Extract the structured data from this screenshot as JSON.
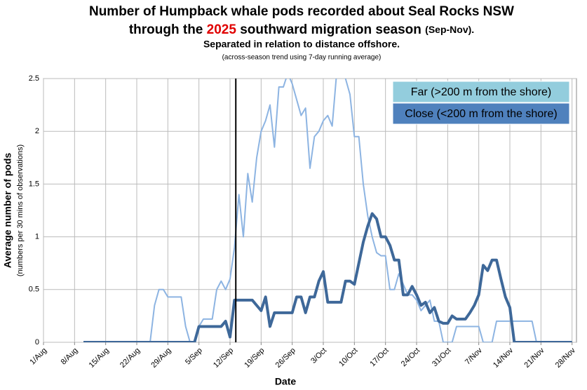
{
  "chart_data": {
    "type": "line",
    "title": "Number of Humpback whale pods recorded about Seal Rocks NSW",
    "title2_parts": [
      "through the ",
      "2025",
      " southward migration season ",
      "(Sep-Nov)."
    ],
    "subtitle": "Separated in relation to distance offshore.",
    "note": "(across-season trend using 7-day running  average)",
    "y_label": "Average number of pods",
    "y_label2": "(numbers per 30 mins of observations)",
    "x_label": "Date",
    "xlim": [
      0,
      120
    ],
    "xticks": [
      {
        "value": 0,
        "label": "1/Aug"
      },
      {
        "value": 7,
        "label": "8/Aug"
      },
      {
        "value": 14,
        "label": "15/Aug"
      },
      {
        "value": 21,
        "label": "22/Aug"
      },
      {
        "value": 28,
        "label": "29/Aug"
      },
      {
        "value": 35,
        "label": "5/Sep"
      },
      {
        "value": 42,
        "label": "12/Sep"
      },
      {
        "value": 49,
        "label": "19/Sep"
      },
      {
        "value": 56,
        "label": "26/Sep"
      },
      {
        "value": 63,
        "label": "3/Oct"
      },
      {
        "value": 70,
        "label": "10/Oct"
      },
      {
        "value": 77,
        "label": "17/Oct"
      },
      {
        "value": 84,
        "label": "24/Oct"
      },
      {
        "value": 91,
        "label": "31/Oct"
      },
      {
        "value": 98,
        "label": "7/Nov"
      },
      {
        "value": 105,
        "label": "14/Nov"
      },
      {
        "value": 112,
        "label": "21/Nov"
      },
      {
        "value": 119,
        "label": "28/Nov"
      }
    ],
    "ylim": [
      0,
      2.5
    ],
    "yticks": [
      0,
      0.5,
      1,
      1.5,
      2,
      2.5
    ],
    "grid": true,
    "legend": "upper right",
    "vline_x": 43.3,
    "x": [
      0,
      1,
      2,
      3,
      4,
      5,
      6,
      7,
      8,
      9,
      10,
      11,
      12,
      13,
      14,
      15,
      16,
      17,
      18,
      19,
      20,
      21,
      22,
      23,
      24,
      25,
      26,
      27,
      28,
      29,
      30,
      31,
      32,
      33,
      34,
      35,
      36,
      37,
      38,
      39,
      40,
      41,
      42,
      43,
      44,
      45,
      46,
      47,
      48,
      49,
      50,
      51,
      52,
      53,
      54,
      55,
      56,
      57,
      58,
      59,
      60,
      61,
      62,
      63,
      64,
      65,
      66,
      67,
      68,
      69,
      70,
      71,
      72,
      73,
      74,
      75,
      76,
      77,
      78,
      79,
      80,
      81,
      82,
      83,
      84,
      85,
      86,
      87,
      88,
      89,
      90,
      91,
      92,
      93,
      94,
      95,
      96,
      97,
      98,
      99,
      100,
      101,
      102,
      103,
      104,
      105,
      106,
      107,
      108,
      109,
      110,
      111,
      112,
      113,
      114,
      115,
      116,
      117,
      118,
      119
    ],
    "series": [
      {
        "name": "Far (>200 m from the shore)",
        "color": "#8db4e2",
        "legend_color": "#93cddd",
        "width": 2,
        "values": [
          null,
          null,
          null,
          null,
          null,
          null,
          null,
          null,
          null,
          0,
          0,
          0,
          0,
          0,
          0,
          0,
          0,
          0,
          0,
          0,
          0,
          0,
          0,
          0,
          0,
          0.35,
          0.5,
          0.5,
          0.43,
          0.43,
          0.43,
          0.43,
          0.15,
          0,
          0,
          0.15,
          0.22,
          0.22,
          0.22,
          0.5,
          0.58,
          0.5,
          0.6,
          0.9,
          1.4,
          1.0,
          1.6,
          1.33,
          1.75,
          2.0,
          2.1,
          2.25,
          1.85,
          2.42,
          2.42,
          2.55,
          2.45,
          2.3,
          2.15,
          2.22,
          1.65,
          1.95,
          2.0,
          2.1,
          2.15,
          2.05,
          2.55,
          2.6,
          2.5,
          2.35,
          1.95,
          1.95,
          1.5,
          1.2,
          1.0,
          0.85,
          0.82,
          0.82,
          0.5,
          0.5,
          0.65,
          0.55,
          0.45,
          0.45,
          0.4,
          0.3,
          0.35,
          0.4,
          0.2,
          0.2,
          0,
          0,
          0,
          0.15,
          0.15,
          0.15,
          0.15,
          0.15,
          0.15,
          0,
          0,
          0,
          0.2,
          0.2,
          0.2,
          0.2,
          0.2,
          0.2,
          0.2,
          0.2,
          0.2,
          0,
          0,
          0,
          0,
          0,
          0,
          0,
          0,
          0
        ]
      },
      {
        "name": "Close (<200 m from the shore)",
        "color": "#3e6899",
        "legend_color": "#4f81bd",
        "width": 4,
        "values": [
          null,
          null,
          null,
          null,
          null,
          null,
          null,
          null,
          null,
          0,
          0,
          0,
          0,
          0,
          0,
          0,
          0,
          0,
          0,
          0,
          0,
          0,
          0,
          0,
          0,
          0,
          0,
          0,
          0,
          0,
          0,
          0,
          0,
          0,
          0,
          0.15,
          0.15,
          0.15,
          0.15,
          0.15,
          0.15,
          0.2,
          0.05,
          0.4,
          0.4,
          0.4,
          0.4,
          0.4,
          0.35,
          0.3,
          0.43,
          0.15,
          0.28,
          0.28,
          0.28,
          0.28,
          0.28,
          0.43,
          0.43,
          0.28,
          0.43,
          0.43,
          0.58,
          0.67,
          0.38,
          0.38,
          0.38,
          0.38,
          0.58,
          0.58,
          0.55,
          0.75,
          0.95,
          1.1,
          1.22,
          1.17,
          1.0,
          1.0,
          0.92,
          0.78,
          0.78,
          0.45,
          0.45,
          0.53,
          0.45,
          0.35,
          0.38,
          0.28,
          0.33,
          0.2,
          0.18,
          0.18,
          0.25,
          0.22,
          0.22,
          0.22,
          0.28,
          0.35,
          0.45,
          0.73,
          0.68,
          0.78,
          0.78,
          0.6,
          0.43,
          0.33,
          0,
          0,
          0,
          0,
          0,
          0,
          0,
          0,
          0,
          0,
          0,
          0,
          0,
          0
        ]
      }
    ]
  }
}
